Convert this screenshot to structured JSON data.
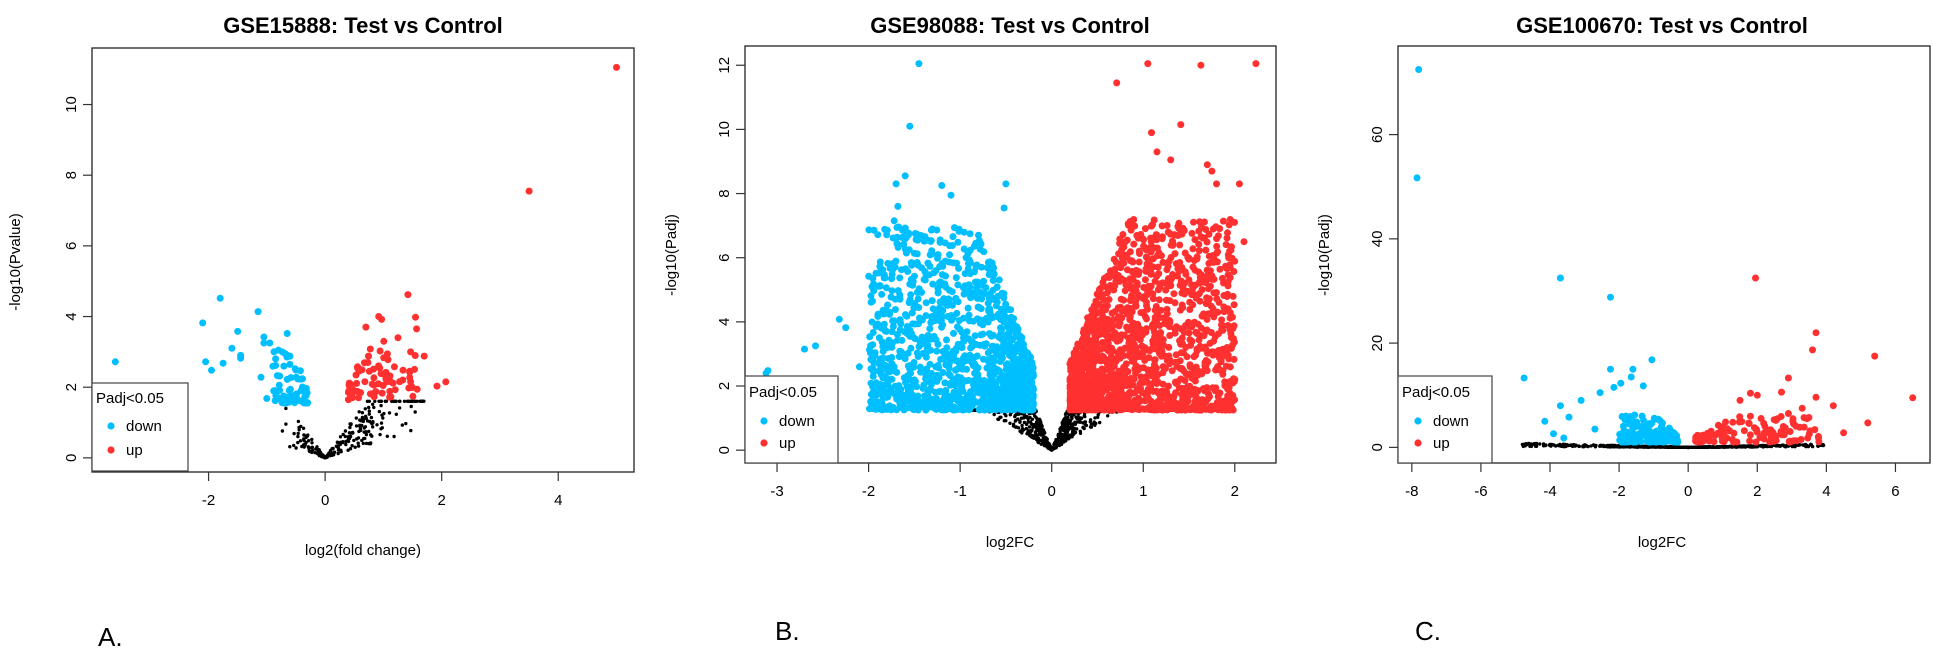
{
  "colors": {
    "down": "#00BFFF",
    "up": "#FF3030",
    "ns": "#000000"
  },
  "panel_labels": [
    "A.",
    "B.",
    "C."
  ],
  "chart_data": [
    {
      "type": "scatter",
      "title": "GSE15888: Test vs Control",
      "xlabel": "log2(fold change)",
      "ylabel": "-log10(Pvalue)",
      "xticks": [
        -2,
        0,
        2,
        4
      ],
      "yticks": [
        0,
        2,
        4,
        6,
        8,
        10
      ],
      "xlim": [
        -4.0,
        5.3
      ],
      "ylim": [
        -0.4,
        11.6
      ],
      "legend": {
        "title": "Padj<0.05",
        "entries": [
          "down",
          "up"
        ],
        "position": "bottom-left"
      },
      "series": [
        {
          "name": "down",
          "points": [
            [
              -3.6,
              2.72
            ],
            [
              -2.1,
              3.82
            ],
            [
              -2.05,
              2.72
            ],
            [
              -1.95,
              2.48
            ],
            [
              -1.8,
              4.52
            ],
            [
              -1.75,
              2.68
            ],
            [
              -1.6,
              3.1
            ],
            [
              -1.5,
              3.58
            ],
            [
              -1.45,
              2.9
            ],
            [
              -1.45,
              2.82
            ],
            [
              -1.15,
              4.14
            ],
            [
              -1.05,
              3.42
            ],
            [
              -1.05,
              3.25
            ],
            [
              -0.95,
              3.25
            ],
            [
              -0.65,
              3.52
            ],
            [
              -1.1,
              2.28
            ],
            [
              -1.0,
              1.68
            ],
            [
              -0.85,
              2.8
            ],
            [
              -0.8,
              3.05
            ]
          ],
          "cluster": {
            "x": [
              -0.9,
              -0.3
            ],
            "y": [
              1.55,
              3.1
            ],
            "n": 70
          }
        },
        {
          "name": "up",
          "points": [
            [
              5.0,
              11.05
            ],
            [
              3.5,
              7.55
            ],
            [
              1.42,
              4.62
            ],
            [
              0.92,
              4.0
            ],
            [
              0.97,
              3.92
            ],
            [
              1.55,
              3.98
            ],
            [
              1.57,
              3.65
            ],
            [
              0.7,
              3.7
            ],
            [
              1.7,
              2.88
            ],
            [
              2.07,
              2.15
            ],
            [
              1.92,
              2.03
            ],
            [
              1.58,
              1.94
            ],
            [
              0.4,
              1.65
            ],
            [
              1.25,
              3.4
            ],
            [
              1.45,
              2.45
            ]
          ],
          "cluster": {
            "x": [
              0.4,
              1.6
            ],
            "y": [
              1.7,
              3.4
            ],
            "n": 75
          }
        },
        {
          "name": "ns",
          "vshape": {
            "slope": 2.0,
            "x": [
              -0.75,
              1.7
            ],
            "ymax": 1.6,
            "n": 260
          }
        }
      ]
    },
    {
      "type": "scatter",
      "title": "GSE98088: Test vs Control",
      "xlabel": "log2FC",
      "ylabel": "-log10(Padj)",
      "xticks": [
        -3,
        -2,
        -1,
        0,
        1,
        2
      ],
      "yticks": [
        0,
        2,
        4,
        6,
        8,
        10,
        12
      ],
      "xlim": [
        -3.35,
        2.45
      ],
      "ylim": [
        -0.4,
        12.6
      ],
      "legend": {
        "title": "Padj<0.05",
        "entries": [
          "down",
          "up"
        ],
        "position": "bottom-left"
      },
      "series": [
        {
          "name": "down",
          "points": [
            [
              -1.45,
              12.05
            ],
            [
              -1.55,
              10.1
            ],
            [
              -1.6,
              8.55
            ],
            [
              -1.7,
              8.3
            ],
            [
              -1.2,
              8.25
            ],
            [
              -0.5,
              8.3
            ],
            [
              -1.1,
              7.95
            ],
            [
              -0.52,
              7.55
            ],
            [
              -1.68,
              7.6
            ],
            [
              -1.72,
              7.15
            ],
            [
              -3.1,
              2.48
            ],
            [
              -3.12,
              2.4
            ],
            [
              -2.7,
              3.15
            ],
            [
              -2.58,
              3.25
            ],
            [
              -2.32,
              4.08
            ],
            [
              -2.25,
              3.82
            ],
            [
              -1.5,
              1.4
            ],
            [
              -2.1,
              2.6
            ],
            [
              -1.95,
              2.3
            ],
            [
              -1.9,
              2.0
            ]
          ],
          "cluster": {
            "x": [
              -2.0,
              -0.2
            ],
            "y": [
              1.25,
              7.0
            ],
            "n": 1300
          }
        },
        {
          "name": "up",
          "points": [
            [
              1.05,
              12.05
            ],
            [
              1.63,
              12.0
            ],
            [
              2.23,
              12.05
            ],
            [
              0.71,
              11.45
            ],
            [
              1.41,
              10.15
            ],
            [
              1.09,
              9.9
            ],
            [
              1.15,
              9.3
            ],
            [
              1.3,
              9.05
            ],
            [
              1.7,
              8.9
            ],
            [
              1.75,
              8.7
            ],
            [
              2.05,
              8.3
            ],
            [
              1.8,
              8.3
            ],
            [
              2.1,
              6.5
            ],
            [
              1.95,
              5.7
            ],
            [
              2.0,
              2.2
            ],
            [
              1.85,
              3.0
            ],
            [
              1.9,
              2.0
            ]
          ],
          "cluster": {
            "x": [
              0.2,
              2.0
            ],
            "y": [
              1.25,
              7.2
            ],
            "n": 1500
          }
        },
        {
          "name": "ns",
          "vshape": {
            "slope": 6.5,
            "x": [
              -1.25,
              1.55
            ],
            "ymax": 1.25,
            "n": 1400
          }
        }
      ]
    },
    {
      "type": "scatter",
      "title": "GSE100670: Test vs Control",
      "xlabel": "log2FC",
      "ylabel": "-log10(Padj)",
      "xticks": [
        -8,
        -6,
        -4,
        -2,
        0,
        2,
        4,
        6
      ],
      "yticks": [
        0,
        20,
        40,
        60
      ],
      "xlim": [
        -8.4,
        7.0
      ],
      "ylim": [
        -3,
        77
      ],
      "legend": {
        "title": "Padj<0.05",
        "entries": [
          "down",
          "up"
        ],
        "position": "bottom-left"
      },
      "series": [
        {
          "name": "down",
          "points": [
            [
              -7.8,
              72.5
            ],
            [
              -7.85,
              51.7
            ],
            [
              -3.7,
              32.5
            ],
            [
              -2.25,
              28.8
            ],
            [
              -1.05,
              16.8
            ],
            [
              -2.25,
              15.0
            ],
            [
              -1.6,
              15.0
            ],
            [
              -4.75,
              13.3
            ],
            [
              -1.65,
              13.5
            ],
            [
              -1.95,
              12.3
            ],
            [
              -2.15,
              11.5
            ],
            [
              -1.3,
              11.8
            ],
            [
              -2.55,
              10.5
            ],
            [
              -3.1,
              9.0
            ],
            [
              -3.7,
              8.0
            ],
            [
              -4.15,
              5.0
            ],
            [
              -3.45,
              5.8
            ],
            [
              -3.9,
              2.6
            ],
            [
              -3.6,
              1.8
            ],
            [
              -2.7,
              3.5
            ],
            [
              -1.8,
              6.0
            ],
            [
              -1.55,
              6.2
            ]
          ],
          "cluster": {
            "x": [
              -2.0,
              -0.3
            ],
            "y": [
              1.0,
              6.0
            ],
            "n": 150
          }
        },
        {
          "name": "up",
          "points": [
            [
              1.95,
              32.5
            ],
            [
              3.7,
              22.0
            ],
            [
              3.6,
              18.7
            ],
            [
              5.4,
              17.5
            ],
            [
              2.9,
              13.3
            ],
            [
              6.5,
              9.5
            ],
            [
              1.8,
              10.4
            ],
            [
              2.0,
              10.0
            ],
            [
              2.7,
              10.6
            ],
            [
              3.7,
              9.6
            ],
            [
              4.2,
              8.0
            ],
            [
              5.2,
              4.7
            ],
            [
              4.5,
              2.8
            ],
            [
              2.9,
              6.5
            ],
            [
              3.3,
              7.5
            ],
            [
              1.5,
              9.0
            ]
          ],
          "cluster": {
            "x": [
              0.2,
              3.8
            ],
            "y": [
              1.0,
              6.0
            ],
            "n": 120
          }
        },
        {
          "name": "ns",
          "vshape": {
            "slope": 0.15,
            "x": [
              -4.8,
              3.95
            ],
            "ymax": 1.5,
            "n": 700
          }
        }
      ]
    }
  ]
}
